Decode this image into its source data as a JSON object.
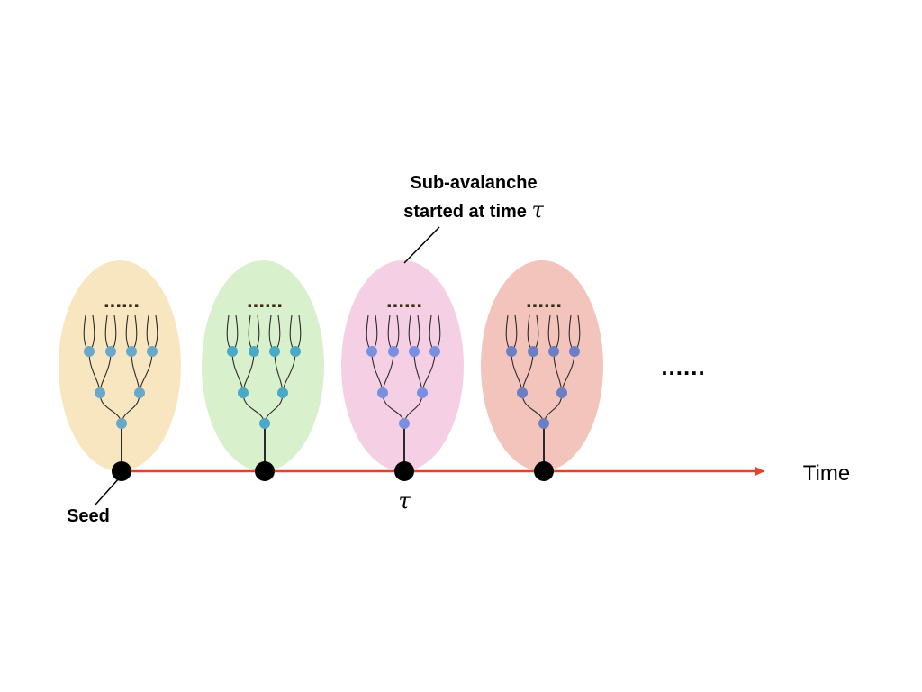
{
  "labels": {
    "sub_avalanche_line1": "Sub-avalanche",
    "sub_avalanche_line2": "started at time ",
    "tau_symbol": "τ",
    "seed": "Seed",
    "time": "Time",
    "ellipsis": "......"
  },
  "colors": {
    "axis": "#e0452b",
    "seed_node": "#000000",
    "branch": "#2a2a2a",
    "tree_dots": "#3a2a1a"
  },
  "avalanches": [
    {
      "fill": "#f8e6c0",
      "node": "#6aa8c9"
    },
    {
      "fill": "#d9f0cc",
      "node": "#4aa9c6"
    },
    {
      "fill": "#f5d0e4",
      "node": "#7a8fe0"
    },
    {
      "fill": "#f2c4bc",
      "node": "#6d7fc4"
    }
  ]
}
